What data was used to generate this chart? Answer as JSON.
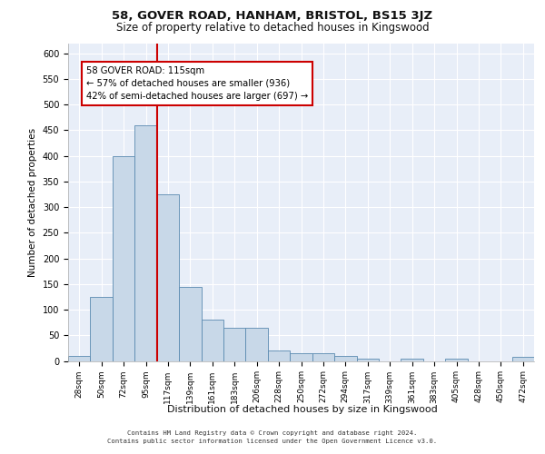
{
  "title": "58, GOVER ROAD, HANHAM, BRISTOL, BS15 3JZ",
  "subtitle": "Size of property relative to detached houses in Kingswood",
  "xlabel_bottom": "Distribution of detached houses by size in Kingswood",
  "ylabel": "Number of detached properties",
  "bar_labels": [
    "28sqm",
    "50sqm",
    "72sqm",
    "95sqm",
    "117sqm",
    "139sqm",
    "161sqm",
    "183sqm",
    "206sqm",
    "228sqm",
    "250sqm",
    "272sqm",
    "294sqm",
    "317sqm",
    "339sqm",
    "361sqm",
    "383sqm",
    "405sqm",
    "428sqm",
    "450sqm",
    "472sqm"
  ],
  "bar_values": [
    10,
    125,
    400,
    460,
    325,
    145,
    80,
    65,
    65,
    20,
    15,
    15,
    10,
    5,
    0,
    5,
    0,
    5,
    0,
    0,
    8
  ],
  "bar_color": "#c8d8e8",
  "bar_edge_color": "#5a8ab0",
  "vline_x_index": 4,
  "vline_color": "#cc0000",
  "annotation_text": "58 GOVER ROAD: 115sqm\n← 57% of detached houses are smaller (936)\n42% of semi-detached houses are larger (697) →",
  "annotation_box_color": "#ffffff",
  "annotation_box_edge_color": "#cc0000",
  "ylim": [
    0,
    620
  ],
  "yticks": [
    0,
    50,
    100,
    150,
    200,
    250,
    300,
    350,
    400,
    450,
    500,
    550,
    600
  ],
  "bg_color": "#e8eef8",
  "grid_color": "#ffffff",
  "footer_line1": "Contains HM Land Registry data © Crown copyright and database right 2024.",
  "footer_line2": "Contains public sector information licensed under the Open Government Licence v3.0."
}
